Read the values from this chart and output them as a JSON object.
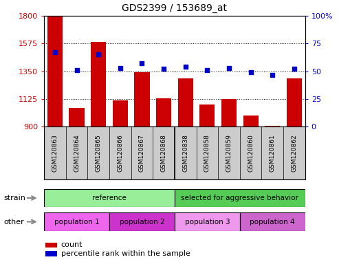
{
  "title": "GDS2399 / 153689_at",
  "samples": [
    "GSM120863",
    "GSM120864",
    "GSM120865",
    "GSM120866",
    "GSM120867",
    "GSM120868",
    "GSM120838",
    "GSM120858",
    "GSM120859",
    "GSM120860",
    "GSM120861",
    "GSM120862"
  ],
  "counts": [
    1795,
    1055,
    1590,
    1115,
    1345,
    1130,
    1290,
    1080,
    1125,
    990,
    910,
    1295
  ],
  "percentiles": [
    67,
    51,
    65,
    53,
    57,
    52,
    54,
    51,
    53,
    49,
    47,
    52
  ],
  "ylim_left": [
    900,
    1800
  ],
  "ylim_right": [
    0,
    100
  ],
  "yticks_left": [
    900,
    1125,
    1350,
    1575,
    1800
  ],
  "yticks_right": [
    0,
    25,
    50,
    75,
    100
  ],
  "bar_color": "#cc0000",
  "dot_color": "#0000cc",
  "strain_groups": [
    {
      "label": "reference",
      "start": 0,
      "end": 6,
      "color": "#99ee99"
    },
    {
      "label": "selected for aggressive behavior",
      "start": 6,
      "end": 12,
      "color": "#55cc55"
    }
  ],
  "other_groups": [
    {
      "label": "population 1",
      "start": 0,
      "end": 3,
      "color": "#ee66ee"
    },
    {
      "label": "population 2",
      "start": 3,
      "end": 6,
      "color": "#cc33cc"
    },
    {
      "label": "population 3",
      "start": 6,
      "end": 9,
      "color": "#ee99ee"
    },
    {
      "label": "population 4",
      "start": 9,
      "end": 12,
      "color": "#cc66cc"
    }
  ],
  "strain_label": "strain",
  "other_label": "other",
  "legend_count_label": "count",
  "legend_percentile_label": "percentile rank within the sample",
  "tick_label_bg": "#cccccc",
  "grid_yticks": [
    1125,
    1350,
    1575
  ]
}
